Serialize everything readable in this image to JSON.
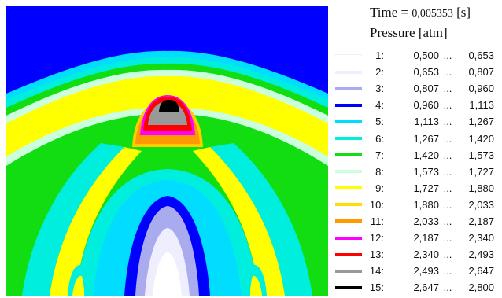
{
  "header": {
    "time_label": "Time = ",
    "time_value": "0,005353",
    "time_unit": "[s]",
    "quantity_label": "Pressure",
    "quantity_unit": "[atm]"
  },
  "chart_data": {
    "type": "heatmap",
    "title": "",
    "background_color": "#0000ff",
    "levels": [
      {
        "index": "1:",
        "low": "0,500",
        "high": "0,653",
        "color": "#ffffff"
      },
      {
        "index": "2:",
        "low": "0,653",
        "high": "0,807",
        "color": "#eeeeff"
      },
      {
        "index": "3:",
        "low": "0,807",
        "high": "0,960",
        "color": "#aaaaee"
      },
      {
        "index": "4:",
        "low": "0,960",
        "high": "1,113",
        "color": "#0000ff"
      },
      {
        "index": "5:",
        "low": "1,113",
        "high": "1,267",
        "color": "#00ddff"
      },
      {
        "index": "6:",
        "low": "1,267",
        "high": "1,420",
        "color": "#00eedd"
      },
      {
        "index": "7:",
        "low": "1,420",
        "high": "1,573",
        "color": "#11dd11"
      },
      {
        "index": "8:",
        "low": "1,573",
        "high": "1,727",
        "color": "#ccffdd"
      },
      {
        "index": "9:",
        "low": "1,727",
        "high": "1,880",
        "color": "#ffff00"
      },
      {
        "index": "10:",
        "low": "1,880",
        "high": "2,033",
        "color": "#ffdd00"
      },
      {
        "index": "11:",
        "low": "2,033",
        "high": "2,187",
        "color": "#ff9900"
      },
      {
        "index": "12:",
        "low": "2,187",
        "high": "2,340",
        "color": "#ff00ff"
      },
      {
        "index": "13:",
        "low": "2,340",
        "high": "2,493",
        "color": "#ff0000"
      },
      {
        "index": "14:",
        "low": "2,493",
        "high": "2,647",
        "color": "#999999"
      },
      {
        "index": "15:",
        "low": "2,647",
        "high": "2,800",
        "color": "#000000"
      }
    ],
    "range_separator": "...",
    "legend": "right"
  }
}
